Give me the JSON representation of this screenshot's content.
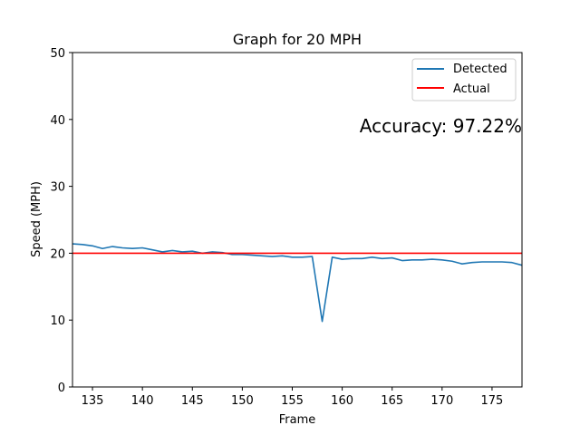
{
  "chart_data": {
    "type": "line",
    "title": "Graph for 20 MPH",
    "xlabel": "Frame",
    "ylabel": "Speed (MPH)",
    "xlim": [
      133,
      178
    ],
    "ylim": [
      0,
      50
    ],
    "xticks": [
      135,
      140,
      145,
      150,
      155,
      160,
      165,
      170,
      175
    ],
    "yticks": [
      0,
      10,
      20,
      30,
      40,
      50
    ],
    "grid": false,
    "legend": "top-right",
    "annotation": "Accuracy: 97.22%",
    "series": [
      {
        "name": "Detected",
        "color": "#1f77b4",
        "x": [
          133,
          134,
          135,
          136,
          137,
          138,
          139,
          140,
          141,
          142,
          143,
          144,
          145,
          146,
          147,
          148,
          149,
          150,
          151,
          152,
          153,
          154,
          155,
          156,
          157,
          158,
          159,
          160,
          161,
          162,
          163,
          164,
          165,
          166,
          167,
          168,
          169,
          170,
          171,
          172,
          173,
          174,
          175,
          176,
          177,
          178
        ],
        "y": [
          21.4,
          21.3,
          21.1,
          20.7,
          21.0,
          20.8,
          20.7,
          20.8,
          20.5,
          20.2,
          20.4,
          20.2,
          20.3,
          20.0,
          20.2,
          20.1,
          19.8,
          19.8,
          19.7,
          19.6,
          19.5,
          19.6,
          19.4,
          19.4,
          19.5,
          9.8,
          19.4,
          19.1,
          19.2,
          19.2,
          19.4,
          19.2,
          19.3,
          18.9,
          19.0,
          19.0,
          19.1,
          19.0,
          18.8,
          18.4,
          18.6,
          18.7,
          18.7,
          18.7,
          18.6,
          18.2
        ]
      },
      {
        "name": "Actual",
        "color": "#ff0000",
        "x": [
          133,
          178
        ],
        "y": [
          20,
          20
        ]
      }
    ]
  }
}
